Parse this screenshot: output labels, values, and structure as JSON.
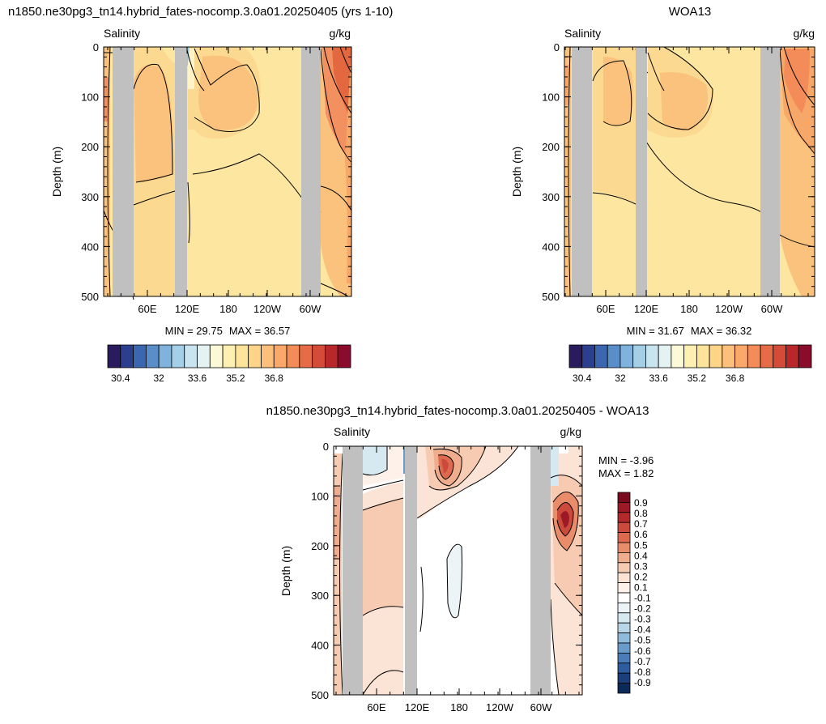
{
  "chart_data": [
    {
      "type": "heatmap",
      "title": "n1850.ne30pg3_tn14.hybrid_fates-nocomp.3.0a01.20250405 (yrs 1-10)",
      "left_label": "Salinity",
      "right_label": "g/kg",
      "ylabel": "Depth (m)",
      "ylim": [
        0,
        500
      ],
      "y_reversed": true,
      "yticks": [
        0,
        100,
        200,
        300,
        400,
        500
      ],
      "xticks": [
        "60E",
        "120E",
        "180",
        "120W",
        "60W"
      ],
      "min_label": "MIN = ",
      "max_label": "MAX = ",
      "min": "29.75",
      "max": "36.57",
      "colorbar": {
        "orientation": "horizontal",
        "levels": 19,
        "colors": [
          "#2a1a5e",
          "#2c3f8f",
          "#3b67b0",
          "#5a8ec8",
          "#7fb2dc",
          "#a4cfe6",
          "#c8e4ee",
          "#e4f2f1",
          "#fbf9d6",
          "#fdf0b0",
          "#fde49a",
          "#fdd488",
          "#fcc07a",
          "#fba86b",
          "#f38c58",
          "#e66c47",
          "#d44b38",
          "#b8282b",
          "#8a0b2c"
        ],
        "labels": [
          "30.4",
          "32",
          "33.6",
          "35.2",
          "36.8"
        ]
      }
    },
    {
      "type": "heatmap",
      "title": "WOA13",
      "left_label": "Salinity",
      "right_label": "g/kg",
      "ylabel": "Depth (m)",
      "ylim": [
        0,
        500
      ],
      "y_reversed": true,
      "yticks": [
        0,
        100,
        200,
        300,
        400,
        500
      ],
      "xticks": [
        "60E",
        "120E",
        "180",
        "120W",
        "60W"
      ],
      "min_label": "MIN = ",
      "max_label": "MAX = ",
      "min": "31.67",
      "max": "36.32",
      "colorbar": {
        "orientation": "horizontal",
        "levels": 19,
        "colors": [
          "#2a1a5e",
          "#2c3f8f",
          "#3b67b0",
          "#5a8ec8",
          "#7fb2dc",
          "#a4cfe6",
          "#c8e4ee",
          "#e4f2f1",
          "#fbf9d6",
          "#fdf0b0",
          "#fde49a",
          "#fdd488",
          "#fcc07a",
          "#fba86b",
          "#f38c58",
          "#e66c47",
          "#d44b38",
          "#b8282b",
          "#8a0b2c"
        ],
        "labels": [
          "30.4",
          "32",
          "33.6",
          "35.2",
          "36.8"
        ]
      }
    },
    {
      "type": "heatmap",
      "title": "n1850.ne30pg3_tn14.hybrid_fates-nocomp.3.0a01.20250405 - WOA13",
      "left_label": "Salinity",
      "right_label": "g/kg",
      "ylabel": "Depth (m)",
      "ylim": [
        0,
        500
      ],
      "y_reversed": true,
      "yticks": [
        0,
        100,
        200,
        300,
        400,
        500
      ],
      "xticks": [
        "60E",
        "120E",
        "180",
        "120W",
        "60W"
      ],
      "min_label": "MIN = ",
      "max_label": "MAX = ",
      "min": "-3.96",
      "max": "1.82",
      "colorbar": {
        "orientation": "vertical",
        "colors": [
          "#7a0a1e",
          "#9c1a26",
          "#b42a2c",
          "#cc4a3c",
          "#dd6a4e",
          "#e88c6a",
          "#f0ad8e",
          "#f6cbb2",
          "#fbe3d5",
          "#fdf1ea",
          "#ffffff",
          "#edf4f8",
          "#d6e8f0",
          "#b8d6e8",
          "#8fbcdc",
          "#6a9ccb",
          "#4a7cba",
          "#2d5c9f",
          "#1a3f7a",
          "#0c2a58"
        ],
        "labels": [
          "0.9",
          "0.8",
          "0.7",
          "0.6",
          "0.5",
          "0.4",
          "0.3",
          "0.2",
          "0.1",
          "-0.1",
          "-0.2",
          "-0.3",
          "-0.4",
          "-0.5",
          "-0.6",
          "-0.7",
          "-0.8",
          "-0.9"
        ]
      }
    }
  ]
}
